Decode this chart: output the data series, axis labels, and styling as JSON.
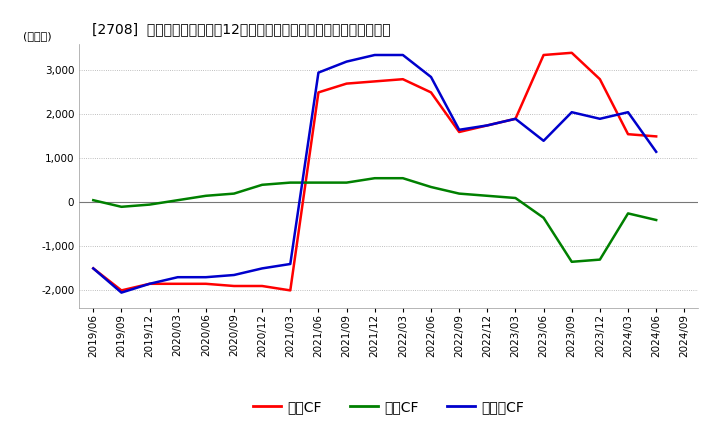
{
  "title": "[2708]  キャッシュフローの12か月移動合計の対前年同期増減額の推移",
  "ylabel": "(百万円)",
  "ylim": [
    -2400,
    3600
  ],
  "yticks": [
    -2000,
    -1000,
    0,
    1000,
    2000,
    3000
  ],
  "legend_labels": [
    "営業CF",
    "投資CF",
    "フリーCF"
  ],
  "line_colors": [
    "#ff0000",
    "#008000",
    "#0000cc"
  ],
  "dates": [
    "2019/06",
    "2019/09",
    "2019/12",
    "2020/03",
    "2020/06",
    "2020/09",
    "2020/12",
    "2021/03",
    "2021/06",
    "2021/09",
    "2021/12",
    "2022/03",
    "2022/06",
    "2022/09",
    "2022/12",
    "2023/03",
    "2023/06",
    "2023/09",
    "2023/12",
    "2024/03",
    "2024/06",
    "2024/09"
  ],
  "operating_cf": [
    -1500,
    -2000,
    -1850,
    -1850,
    -1850,
    -1900,
    -1900,
    -2000,
    2500,
    2700,
    2750,
    2800,
    2500,
    1600,
    1750,
    1900,
    3350,
    3400,
    2800,
    1550,
    1500,
    null
  ],
  "investing_cf": [
    50,
    -100,
    -50,
    50,
    150,
    200,
    400,
    450,
    450,
    450,
    550,
    550,
    350,
    200,
    150,
    100,
    -350,
    -1350,
    -1300,
    -250,
    -400,
    null
  ],
  "free_cf": [
    -1500,
    -2050,
    -1850,
    -1700,
    -1700,
    -1650,
    -1500,
    -1400,
    2950,
    3200,
    3350,
    3350,
    2850,
    1650,
    1750,
    1900,
    1400,
    2050,
    1900,
    2050,
    1150,
    null
  ],
  "background_color": "#ffffff",
  "grid_color": "#aaaaaa",
  "title_fontsize": 11,
  "label_fontsize": 8,
  "tick_fontsize": 7.5,
  "linewidth": 1.8
}
